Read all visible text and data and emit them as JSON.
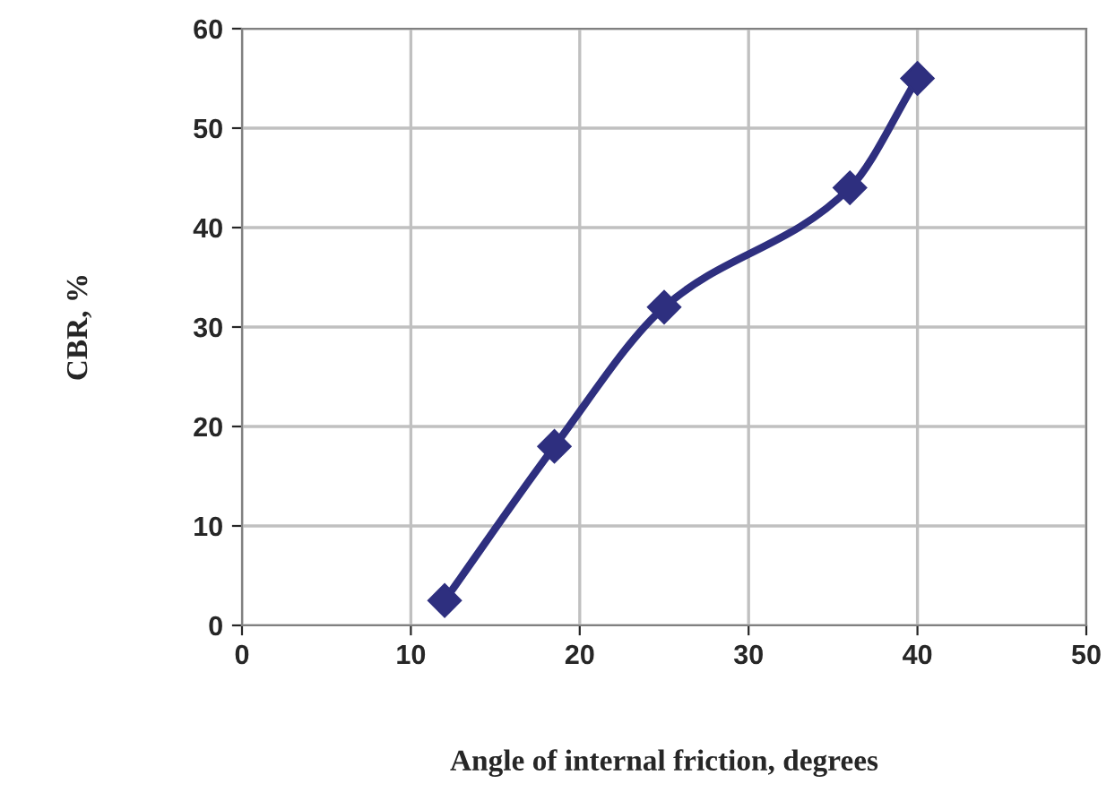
{
  "chart_data": {
    "type": "line",
    "xlabel": "Angle of internal friction, degrees",
    "ylabel": "CBR, %",
    "x": [
      12,
      18.5,
      25,
      36,
      40
    ],
    "series": [
      {
        "color": "#2e2f7f",
        "values": [
          2.5,
          18,
          32,
          44,
          55
        ]
      }
    ],
    "xlim": [
      0,
      50
    ],
    "xticks": [
      0,
      10,
      20,
      30,
      40,
      50
    ],
    "ylim": [
      0,
      60
    ],
    "yticks": [
      0,
      10,
      20,
      30,
      40,
      50,
      60
    ],
    "grid": true,
    "marker": "diamond",
    "line_style": "solid"
  }
}
